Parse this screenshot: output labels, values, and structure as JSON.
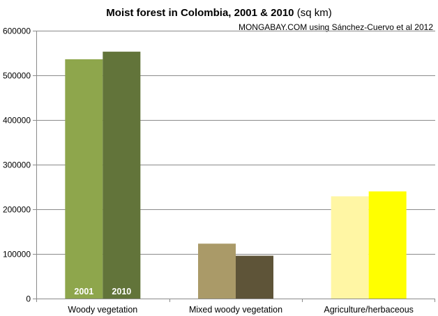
{
  "chart_data": {
    "type": "bar",
    "title_bold": "Moist forest in Colombia, 2001 & 2010",
    "title_unit": "(sq km)",
    "source": "MONGABAY.COM using Sánchez-Cuervo et al 2012",
    "categories": [
      "Woody vegetation",
      "Mixed woody vegetation",
      "Agriculture/herbaceous"
    ],
    "series": [
      {
        "name": "2001",
        "values": [
          536000,
          123000,
          229000
        ]
      },
      {
        "name": "2010",
        "values": [
          553000,
          96000,
          240000
        ]
      }
    ],
    "bar_colors": [
      [
        "#8ea64c",
        "#62743a"
      ],
      [
        "#aa9a68",
        "#5e5438"
      ],
      [
        "#fff6a4",
        "#ffff00"
      ]
    ],
    "ylim": [
      0,
      600000
    ],
    "yticks": [
      "0",
      "100000",
      "200000",
      "300000",
      "400000",
      "500000",
      "600000"
    ],
    "grid": true,
    "legend": "none",
    "xlabel": "",
    "ylabel": ""
  }
}
